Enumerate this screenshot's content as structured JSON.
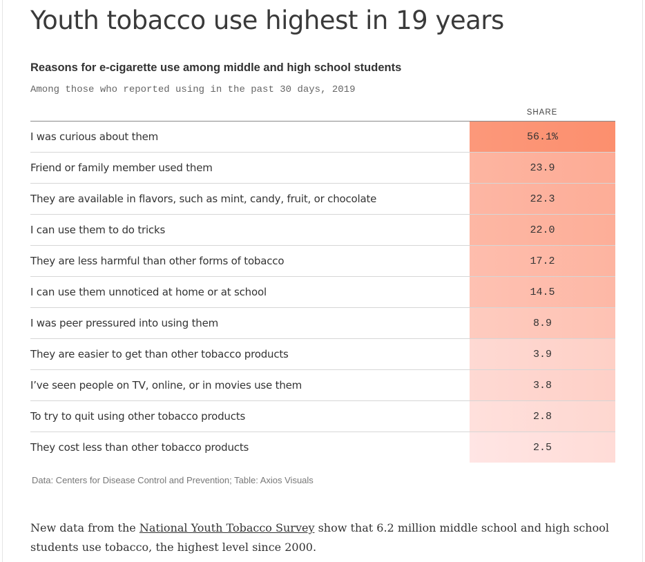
{
  "headline": "Youth tobacco use highest in 19 years",
  "chart_data": {
    "type": "table",
    "title": "Reasons for e-cigarette use among middle and high school students",
    "subtitle": "Among those who reported using in the past 30 days, 2019",
    "column_header": "SHARE",
    "rows": [
      {
        "label": "I was curious about them",
        "value": 56.1,
        "display": "56.1%"
      },
      {
        "label": "Friend or family member used them",
        "value": 23.9,
        "display": "23.9"
      },
      {
        "label": "They are available in flavors, such as mint, candy, fruit, or chocolate",
        "value": 22.3,
        "display": "22.3"
      },
      {
        "label": "I can use them to do tricks",
        "value": 22.0,
        "display": "22.0"
      },
      {
        "label": "They are less harmful than other forms of tobacco",
        "value": 17.2,
        "display": "17.2"
      },
      {
        "label": "I can use them unnoticed at home or at school",
        "value": 14.5,
        "display": "14.5"
      },
      {
        "label": "I was peer pressured into using them",
        "value": 8.9,
        "display": "8.9"
      },
      {
        "label": "They are easier to get than other tobacco products",
        "value": 3.9,
        "display": "3.9"
      },
      {
        "label": "I’ve seen people on TV, online, or in movies use them",
        "value": 3.8,
        "display": "3.8"
      },
      {
        "label": "To try to quit using other tobacco products",
        "value": 2.8,
        "display": "2.8"
      },
      {
        "label": "They cost less than other tobacco products",
        "value": 2.5,
        "display": "2.5"
      }
    ],
    "colors": {
      "high": "#fc8f6e",
      "low": "#ffeaea"
    },
    "source": "Data: Centers for Disease Control and Prevention; Table: Axios Visuals"
  },
  "article": {
    "text_before": "New data from the ",
    "link_text": "National Youth Tobacco Survey",
    "text_after": " show that 6.2 million middle school and high school students use tobacco, the highest level since 2000."
  }
}
